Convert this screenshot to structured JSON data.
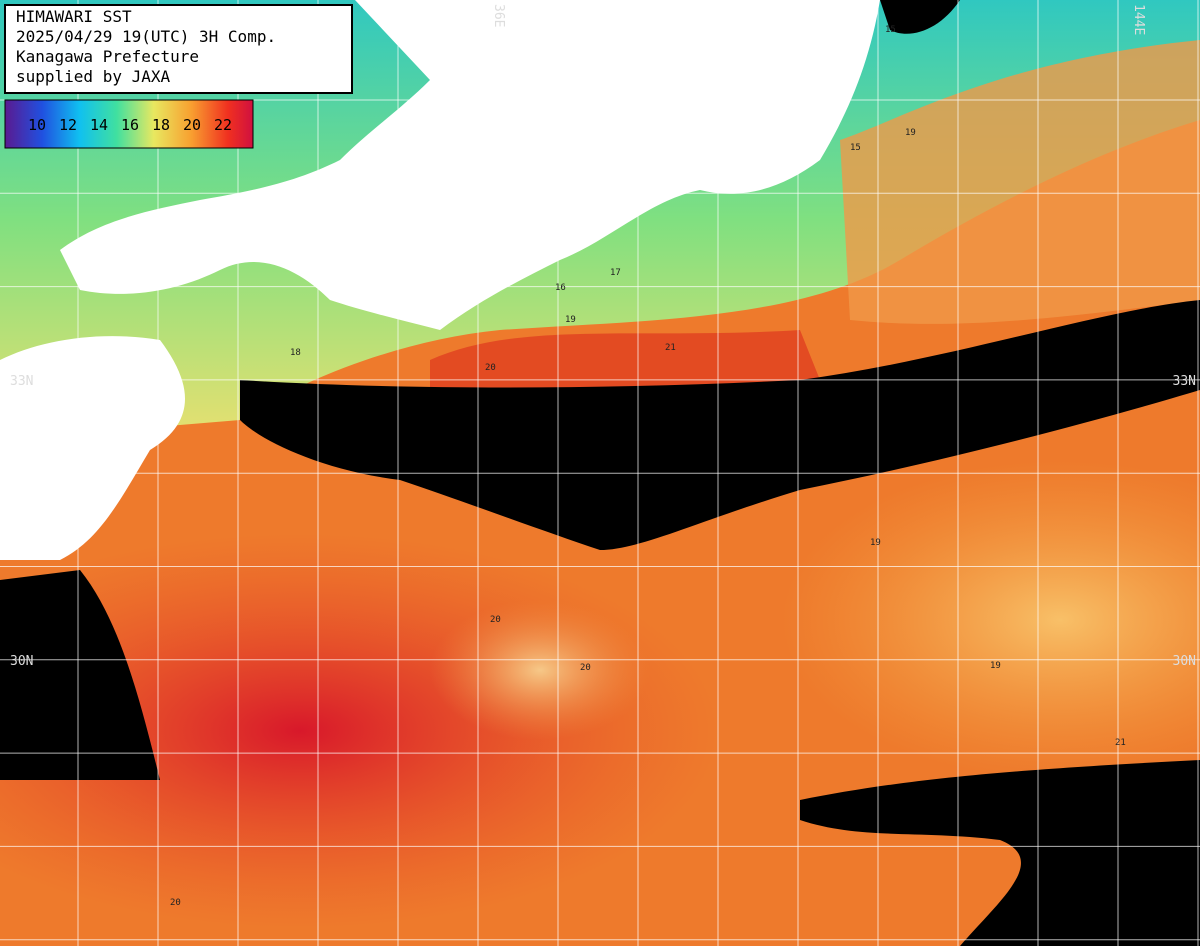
{
  "header": {
    "lines": [
      "HIMAWARI SST",
      "2025/04/29 19(UTC) 3H Comp.",
      "Kanagawa Prefecture",
      "supplied by JAXA"
    ]
  },
  "colorbar": {
    "labels": [
      "10",
      "12",
      "14",
      "16",
      "18",
      "20",
      "22"
    ]
  },
  "grid_labels": {
    "top": [
      "36E",
      "144E"
    ],
    "left": [
      "33N",
      "30N"
    ],
    "right": [
      "33N",
      "30N"
    ]
  },
  "contour_labels": [
    "15",
    "15",
    "17",
    "16",
    "18",
    "19",
    "20",
    "19",
    "21",
    "20",
    "19",
    "20",
    "19",
    "20",
    "21"
  ]
}
